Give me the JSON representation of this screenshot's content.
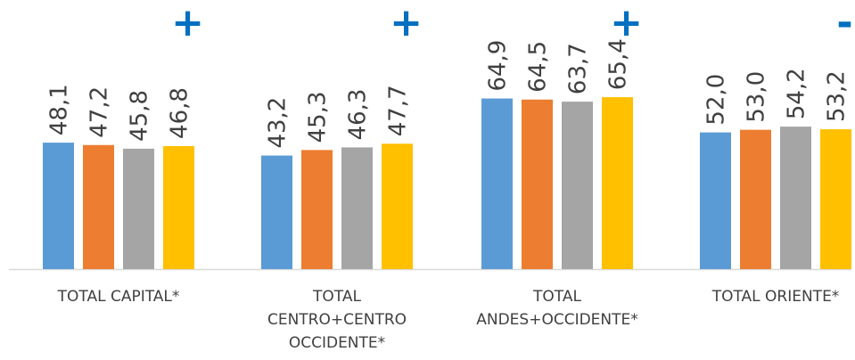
{
  "chart_data": {
    "type": "bar",
    "categories": [
      "TOTAL CAPITAL*",
      "TOTAL CENTRO+CENTRO OCCIDENTE*",
      "TOTAL ANDES+OCCIDENTE*",
      "TOTAL ORIENTE*"
    ],
    "category_label_lines": [
      [
        "TOTAL CAPITAL*"
      ],
      [
        "TOTAL",
        "CENTRO+CENTRO",
        "OCCIDENTE*"
      ],
      [
        "TOTAL",
        "ANDES+OCCIDENTE*"
      ],
      [
        "TOTAL ORIENTE*"
      ]
    ],
    "series": [
      {
        "values": [
          48.1,
          43.2,
          64.9,
          52.0
        ],
        "labels": [
          "48,1",
          "43,2",
          "64,9",
          "52,0"
        ],
        "color": "#5B9BD5"
      },
      {
        "values": [
          47.2,
          45.3,
          64.5,
          53.0
        ],
        "labels": [
          "47,2",
          "45,3",
          "64,5",
          "53,0"
        ],
        "color": "#ED7D31"
      },
      {
        "values": [
          45.8,
          46.3,
          63.7,
          54.2
        ],
        "labels": [
          "45,8",
          "46,3",
          "63,7",
          "54,2"
        ],
        "color": "#A5A5A5"
      },
      {
        "values": [
          46.8,
          47.7,
          65.4,
          53.2
        ],
        "labels": [
          "46,8",
          "47,7",
          "65,4",
          "53,2"
        ],
        "color": "#FFC000"
      }
    ],
    "change_signs": [
      "+",
      "+",
      "+",
      "-"
    ],
    "sign_color": "#0070C0",
    "axis_color": "#D9D9D9",
    "label_color": "#404040",
    "ylim": [
      0,
      100
    ],
    "grid": false,
    "legend": "none"
  }
}
